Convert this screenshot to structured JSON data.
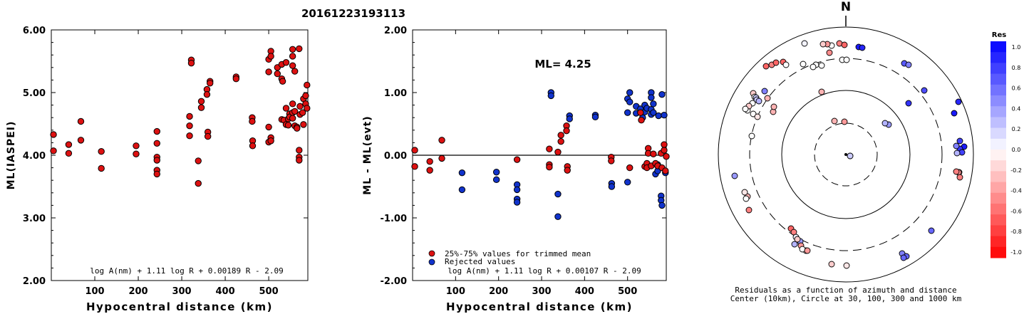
{
  "title": "20161223193113",
  "chart_data": [
    {
      "id": "left",
      "type": "scatter",
      "ylabel": "ML(IASPEI)",
      "xlabel": "Hypocentral distance (km)",
      "xlim": [
        0,
        590
      ],
      "ylim": [
        2.0,
        6.0
      ],
      "x_ticks": [
        "100",
        "200",
        "300",
        "400",
        "500"
      ],
      "y_ticks": [
        "2.00",
        "3.00",
        "4.00",
        "5.00",
        "6.00"
      ],
      "formula": "log A(nm) + 1.11 log R + 0.00189 R - 2.09",
      "point_color": "#dd1111",
      "points": [
        [
          5,
          4.33
        ],
        [
          5,
          4.07
        ],
        [
          40,
          4.17
        ],
        [
          40,
          4.03
        ],
        [
          68,
          4.54
        ],
        [
          68,
          4.24
        ],
        [
          115,
          4.06
        ],
        [
          115,
          3.79
        ],
        [
          195,
          4.15
        ],
        [
          195,
          4.02
        ],
        [
          243,
          4.38
        ],
        [
          243,
          4.19
        ],
        [
          243,
          3.97
        ],
        [
          243,
          3.92
        ],
        [
          243,
          3.76
        ],
        [
          243,
          3.7
        ],
        [
          318,
          4.62
        ],
        [
          318,
          4.47
        ],
        [
          318,
          4.31
        ],
        [
          322,
          5.52
        ],
        [
          322,
          5.47
        ],
        [
          338,
          3.91
        ],
        [
          338,
          3.55
        ],
        [
          345,
          4.86
        ],
        [
          345,
          4.76
        ],
        [
          358,
          5.05
        ],
        [
          358,
          4.97
        ],
        [
          360,
          4.37
        ],
        [
          360,
          4.3
        ],
        [
          365,
          5.18
        ],
        [
          365,
          5.15
        ],
        [
          425,
          5.25
        ],
        [
          425,
          5.22
        ],
        [
          462,
          4.6
        ],
        [
          462,
          4.54
        ],
        [
          463,
          4.23
        ],
        [
          463,
          4.15
        ],
        [
          500,
          5.53
        ],
        [
          500,
          5.33
        ],
        [
          500,
          4.45
        ],
        [
          500,
          4.21
        ],
        [
          505,
          5.66
        ],
        [
          505,
          5.58
        ],
        [
          505,
          4.28
        ],
        [
          505,
          4.23
        ],
        [
          520,
          5.4
        ],
        [
          520,
          5.3
        ],
        [
          530,
          5.45
        ],
        [
          530,
          5.22
        ],
        [
          530,
          4.57
        ],
        [
          532,
          5.18
        ],
        [
          535,
          4.56
        ],
        [
          540,
          5.48
        ],
        [
          540,
          4.75
        ],
        [
          540,
          4.49
        ],
        [
          545,
          4.58
        ],
        [
          545,
          4.48
        ],
        [
          548,
          4.66
        ],
        [
          548,
          4.61
        ],
        [
          555,
          5.69
        ],
        [
          555,
          5.58
        ],
        [
          555,
          5.43
        ],
        [
          555,
          4.82
        ],
        [
          555,
          4.68
        ],
        [
          555,
          4.59
        ],
        [
          560,
          5.34
        ],
        [
          560,
          4.7
        ],
        [
          560,
          4.47
        ],
        [
          565,
          4.45
        ],
        [
          565,
          4.43
        ],
        [
          570,
          5.7
        ],
        [
          570,
          4.08
        ],
        [
          570,
          3.97
        ],
        [
          570,
          3.92
        ],
        [
          572,
          4.78
        ],
        [
          572,
          4.65
        ],
        [
          578,
          4.68
        ],
        [
          580,
          4.9
        ],
        [
          580,
          4.49
        ],
        [
          585,
          4.95
        ],
        [
          585,
          4.82
        ],
        [
          588,
          5.12
        ],
        [
          588,
          4.75
        ]
      ]
    },
    {
      "id": "middle",
      "type": "scatter",
      "ylabel": "ML - ML(evt)",
      "xlabel": "Hypocentral distance (km)",
      "xlim": [
        0,
        590
      ],
      "ylim": [
        -2.0,
        2.0
      ],
      "x_ticks": [
        "100",
        "200",
        "300",
        "400",
        "500"
      ],
      "y_ticks": [
        "-2.00",
        "-1.00",
        "0.00",
        "1.00",
        "2.00"
      ],
      "annotation": "ML= 4.25",
      "formula": "log A(nm) + 1.11 log R + 0.00107 R - 2.09",
      "legend": [
        {
          "label": "25%-75% values for trimmed mean",
          "color": "#dd1111"
        },
        {
          "label": "Rejected values",
          "color": "#1133cc"
        }
      ],
      "red_points": [
        [
          5,
          0.08
        ],
        [
          5,
          -0.18
        ],
        [
          40,
          -0.1
        ],
        [
          40,
          -0.24
        ],
        [
          68,
          0.24
        ],
        [
          68,
          -0.05
        ],
        [
          243,
          -0.07
        ],
        [
          318,
          0.1
        ],
        [
          318,
          -0.15
        ],
        [
          318,
          -0.19
        ],
        [
          338,
          0.05
        ],
        [
          345,
          0.32
        ],
        [
          345,
          0.22
        ],
        [
          358,
          0.47
        ],
        [
          358,
          0.39
        ],
        [
          360,
          -0.18
        ],
        [
          360,
          -0.24
        ],
        [
          462,
          -0.03
        ],
        [
          462,
          -0.09
        ],
        [
          505,
          -0.2
        ],
        [
          530,
          0.68
        ],
        [
          532,
          0.56
        ],
        [
          540,
          -0.18
        ],
        [
          545,
          -0.13
        ],
        [
          545,
          -0.2
        ],
        [
          548,
          0.11
        ],
        [
          548,
          0.03
        ],
        [
          555,
          -0.17
        ],
        [
          560,
          0.02
        ],
        [
          565,
          -0.13
        ],
        [
          570,
          -0.17
        ],
        [
          578,
          0.03
        ],
        [
          580,
          -0.2
        ],
        [
          585,
          0.08
        ],
        [
          585,
          0.17
        ],
        [
          588,
          -0.25
        ],
        [
          590,
          -0.02
        ]
      ],
      "blue_points": [
        [
          115,
          -0.28
        ],
        [
          115,
          -0.55
        ],
        [
          195,
          -0.27
        ],
        [
          195,
          -0.39
        ],
        [
          243,
          -0.47
        ],
        [
          243,
          -0.55
        ],
        [
          243,
          -0.7
        ],
        [
          243,
          -0.75
        ],
        [
          322,
          1.0
        ],
        [
          322,
          0.95
        ],
        [
          338,
          -0.62
        ],
        [
          338,
          -0.98
        ],
        [
          365,
          0.63
        ],
        [
          365,
          0.58
        ],
        [
          425,
          0.64
        ],
        [
          425,
          0.61
        ],
        [
          463,
          -0.45
        ],
        [
          463,
          -0.5
        ],
        [
          500,
          0.9
        ],
        [
          500,
          0.68
        ],
        [
          500,
          -0.43
        ],
        [
          505,
          1.0
        ],
        [
          505,
          0.85
        ],
        [
          520,
          0.78
        ],
        [
          520,
          0.67
        ],
        [
          530,
          0.74
        ],
        [
          535,
          0.6
        ],
        [
          540,
          0.8
        ],
        [
          540,
          0.69
        ],
        [
          545,
          0.75
        ],
        [
          555,
          1.0
        ],
        [
          555,
          0.92
        ],
        [
          555,
          0.73
        ],
        [
          555,
          0.65
        ],
        [
          560,
          0.82
        ],
        [
          560,
          0.68
        ],
        [
          565,
          -0.3
        ],
        [
          570,
          -0.15
        ],
        [
          570,
          -0.25
        ],
        [
          572,
          0.63
        ],
        [
          578,
          -0.65
        ],
        [
          578,
          -0.72
        ],
        [
          580,
          -0.8
        ],
        [
          580,
          0.97
        ],
        [
          585,
          0.64
        ],
        [
          588,
          -0.28
        ]
      ]
    },
    {
      "id": "polar",
      "type": "scatter",
      "north_label": "N",
      "caption_line1": "Residuals as a function of azimuth and distance",
      "caption_line2": "Center (10km), Circle at 30, 100, 300 and 1000 km",
      "colorbar_title": "Res",
      "colorbar_ticks": [
        "1.0",
        "0.8",
        "0.6",
        "0.4",
        "0.2",
        "0.0",
        "-0.2",
        "-0.4",
        "-0.6",
        "-0.8",
        "-1.0"
      ],
      "points": [
        [
          -58,
          -156,
          0.05
        ],
        [
          -20,
          -153,
          0.0
        ],
        [
          -26,
          -155,
          -0.4
        ],
        [
          -32,
          -155,
          -0.2
        ],
        [
          -9,
          -156,
          -0.5
        ],
        [
          -2,
          -154,
          -0.6
        ],
        [
          -23,
          -143,
          -0.45
        ],
        [
          -5,
          -133,
          0.0
        ],
        [
          1,
          -133,
          0.0
        ],
        [
          18,
          -151,
          0.9
        ],
        [
          23,
          -150,
          0.85
        ],
        [
          -60,
          -127,
          0.0
        ],
        [
          -42,
          -126,
          0.0
        ],
        [
          -46,
          -123,
          0.0
        ],
        [
          -34,
          -125,
          0.0
        ],
        [
          -112,
          -124,
          -0.6
        ],
        [
          -104,
          -126,
          -0.5
        ],
        [
          -98,
          -129,
          -0.6
        ],
        [
          -88,
          -130,
          -0.6
        ],
        [
          -84,
          -126,
          0.0
        ],
        [
          -114,
          -89,
          0.5
        ],
        [
          -110,
          -79,
          -0.3
        ],
        [
          -130,
          -86,
          -0.2
        ],
        [
          -128,
          -81,
          0.0
        ],
        [
          -126,
          -80,
          0.2
        ],
        [
          -125,
          -77,
          0.2
        ],
        [
          -122,
          -75,
          0.3
        ],
        [
          -131,
          -72,
          0.0
        ],
        [
          -138,
          -62,
          0.0
        ],
        [
          -136,
          -68,
          -0.2
        ],
        [
          -141,
          -64,
          0.0
        ],
        [
          -130,
          -57,
          0.0
        ],
        [
          -124,
          -53,
          -0.1
        ],
        [
          -34,
          -88,
          -0.3
        ],
        [
          -102,
          -60,
          -0.3
        ],
        [
          -101,
          -67,
          -0.3
        ],
        [
          -132,
          -26,
          0.0
        ],
        [
          82,
          -128,
          0.65
        ],
        [
          88,
          -126,
          0.5
        ],
        [
          110,
          -90,
          0.7
        ],
        [
          88,
          -72,
          0.8
        ],
        [
          158,
          -74,
          0.85
        ],
        [
          152,
          -58,
          0.9
        ],
        [
          166,
          -11,
          0.9
        ],
        [
          160,
          -8,
          0.8
        ],
        [
          163,
          -3,
          0.75
        ],
        [
          156,
          -2,
          0.3
        ],
        [
          155,
          -12,
          0.5
        ],
        [
          160,
          -19,
          0.75
        ],
        [
          159,
          25,
          -0.5
        ],
        [
          -16,
          -47,
          -0.3
        ],
        [
          -2,
          -46,
          -0.4
        ],
        [
          60,
          -42,
          0.4
        ],
        [
          55,
          -44,
          0.3
        ],
        [
          6,
          2,
          0.0
        ],
        [
          6,
          2,
          0.2
        ],
        [
          -156,
          30,
          0.4
        ],
        [
          -138,
          59,
          -0.3
        ],
        [
          -142,
          53,
          -0.1
        ],
        [
          -140,
          62,
          0.0
        ],
        [
          -136,
          78,
          -0.5
        ],
        [
          -77,
          104,
          -0.6
        ],
        [
          -73,
          109,
          -0.5
        ],
        [
          -70,
          116,
          0.05
        ],
        [
          -64,
          122,
          0.4
        ],
        [
          -63,
          128,
          -0.4
        ],
        [
          -56,
          135,
          -0.2
        ],
        [
          -61,
          133,
          0.0
        ],
        [
          -20,
          154,
          -0.2
        ],
        [
          1,
          156,
          -0.1
        ],
        [
          79,
          139,
          0.5
        ],
        [
          120,
          107,
          0.6
        ],
        [
          85,
          143,
          0.6
        ],
        [
          81,
          145,
          0.6
        ],
        [
          158,
          25,
          -0.4
        ],
        [
          160,
          32,
          -0.5
        ],
        [
          155,
          24,
          -0.5
        ],
        [
          -72,
          126,
          0.3
        ],
        [
          -68,
          119,
          -0.2
        ],
        [
          -54,
          135,
          -0.4
        ]
      ]
    }
  ]
}
